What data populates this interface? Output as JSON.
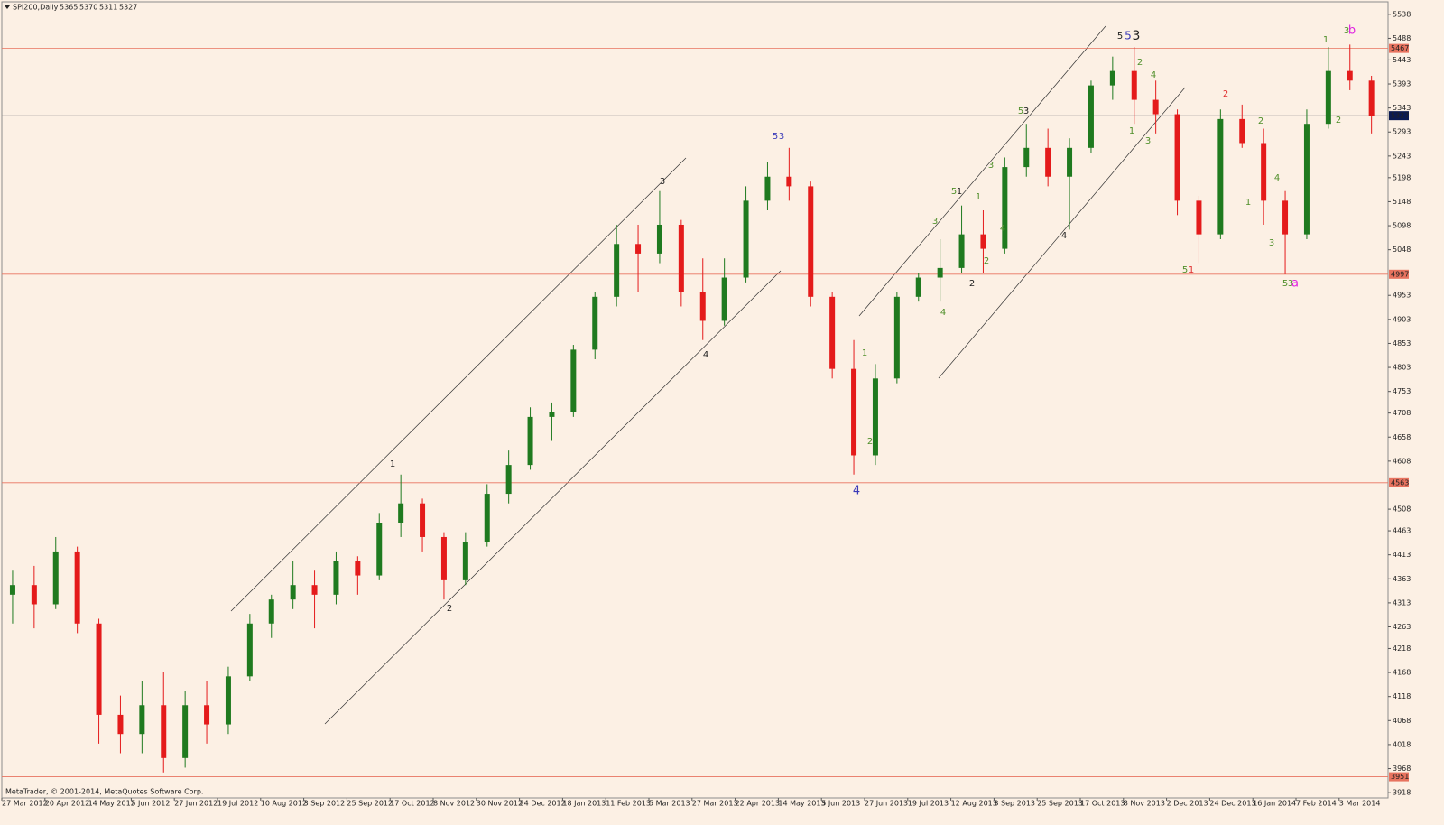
{
  "chart_data": {
    "type": "candlestick",
    "title": "SPI200,Daily",
    "header_values": [
      5365,
      5370,
      5311,
      5327
    ],
    "footer": "MetaTrader, © 2001-2014, MetaQuotes Software Corp.",
    "up_color": "#1f7a1f",
    "down_color": "#e41b1b",
    "categories": [
      "27 Mar 2012",
      null,
      "20 Apr 2012",
      null,
      "14 May 2012",
      null,
      "5 Jun 2012",
      null,
      "27 Jun 2012",
      null,
      "19 Jul 2012",
      null,
      "10 Aug 2012",
      null,
      "3 Sep 2012",
      null,
      "25 Sep 2012",
      null,
      "17 Oct 2012",
      null,
      "8 Nov 2012",
      null,
      "30 Nov 2012",
      null,
      "24 Dec 2012",
      null,
      "18 Jan 2013",
      null,
      "11 Feb 2013",
      null,
      "5 Mar 2013",
      null,
      "27 Mar 2013",
      null,
      "22 Apr 2013",
      null,
      "14 May 2013",
      null,
      "5 Jun 2013",
      null,
      "27 Jun 2013",
      null,
      "19 Jul 2013",
      null,
      "12 Aug 2013",
      null,
      "3 Sep 2013",
      null,
      "25 Sep 2013",
      null,
      "17 Oct 2013",
      null,
      "8 Nov 2013",
      null,
      "2 Dec 2013",
      null,
      "24 Dec 2013",
      null,
      "16 Jan 2014",
      null,
      "7 Feb 2014",
      null,
      "3 Mar 2014",
      null
    ],
    "open": [
      4330,
      4350,
      4310,
      4420,
      4270,
      4080,
      4040,
      4100,
      3990,
      4100,
      4060,
      4160,
      4270,
      4320,
      4350,
      4330,
      4400,
      4370,
      4480,
      4520,
      4450,
      4360,
      4440,
      4540,
      4600,
      4700,
      4710,
      4840,
      4950,
      5060,
      5040,
      5100,
      4960,
      4900,
      4990,
      5150,
      5200,
      5180,
      4950,
      4800,
      4620,
      4780,
      4950,
      4990,
      5010,
      5080,
      5050,
      5220,
      5260,
      5200,
      5260,
      5390,
      5420,
      5360,
      5330,
      5150,
      5080,
      5320,
      5270,
      5150,
      5080,
      5310,
      5420,
      5400
    ],
    "high": [
      4380,
      4390,
      4450,
      4430,
      4280,
      4120,
      4150,
      4170,
      4130,
      4150,
      4180,
      4290,
      4330,
      4400,
      4380,
      4420,
      4410,
      4500,
      4580,
      4530,
      4460,
      4460,
      4560,
      4630,
      4720,
      4730,
      4850,
      4960,
      5100,
      5100,
      5170,
      5110,
      5030,
      5030,
      5180,
      5230,
      5260,
      5190,
      4960,
      4860,
      4810,
      4960,
      5000,
      5070,
      5140,
      5130,
      5240,
      5310,
      5300,
      5280,
      5400,
      5450,
      5470,
      5400,
      5340,
      5160,
      5340,
      5350,
      5300,
      5170,
      5340,
      5470,
      5475,
      5410
    ],
    "low": [
      4270,
      4260,
      4300,
      4250,
      4020,
      4000,
      4000,
      3960,
      3970,
      4020,
      4040,
      4150,
      4240,
      4300,
      4260,
      4310,
      4330,
      4360,
      4450,
      4420,
      4320,
      4350,
      4430,
      4520,
      4590,
      4650,
      4700,
      4820,
      4930,
      4960,
      5020,
      4930,
      4860,
      4890,
      4980,
      5130,
      5150,
      4930,
      4780,
      4580,
      4600,
      4770,
      4940,
      4940,
      5000,
      5000,
      5040,
      5200,
      5180,
      5090,
      5250,
      5360,
      5310,
      5290,
      5120,
      5020,
      5070,
      5260,
      5100,
      4997,
      5070,
      5300,
      5380,
      5290
    ],
    "close": [
      4350,
      4310,
      4420,
      4270,
      4080,
      4040,
      4100,
      3990,
      4100,
      4060,
      4160,
      4270,
      4320,
      4350,
      4330,
      4400,
      4370,
      4480,
      4520,
      4450,
      4360,
      4440,
      4540,
      4600,
      4700,
      4710,
      4840,
      4950,
      5060,
      5040,
      5100,
      4960,
      4900,
      4990,
      5150,
      5200,
      5180,
      4950,
      4800,
      4620,
      4780,
      4950,
      4990,
      5010,
      5080,
      5050,
      5220,
      5260,
      5200,
      5260,
      5390,
      5420,
      5360,
      5330,
      5150,
      5080,
      5320,
      5270,
      5150,
      5080,
      5310,
      5420,
      5400,
      5327
    ],
    "ylim": [
      3907,
      5564
    ],
    "yticks": [
      5538,
      5488,
      5443,
      5393,
      5343,
      5293,
      5243,
      5198,
      5148,
      5098,
      5048,
      4953,
      4903,
      4853,
      4803,
      4753,
      4708,
      4658,
      4608,
      4508,
      4463,
      4413,
      4363,
      4313,
      4263,
      4218,
      4168,
      4118,
      4068,
      4018,
      3968,
      3918
    ],
    "levels": [
      {
        "value": 5467,
        "color": "#e8735f"
      },
      {
        "value": 5327,
        "color": "#8a8a8a",
        "label_color": "#0b1a52"
      },
      {
        "value": 4997,
        "color": "#e8735f"
      },
      {
        "value": 4563,
        "color": "#e8735f"
      },
      {
        "value": 3951,
        "color": "#e8735f"
      }
    ],
    "annotations": [
      {
        "text": "1",
        "color": "#222222"
      },
      {
        "text": "2",
        "color": "#222222"
      },
      {
        "text": "3",
        "color": "#222222"
      },
      {
        "text": "4",
        "color": "#222222"
      },
      {
        "text": "5",
        "color": "#3a3ab8"
      },
      {
        "text": "3",
        "color": "#3a3ab8"
      },
      {
        "text": "4",
        "color": "#3a3ab8"
      },
      {
        "text": "1",
        "color": "#4f8f2a"
      },
      {
        "text": "2",
        "color": "#4f8f2a"
      },
      {
        "text": "3",
        "color": "#4f8f2a"
      },
      {
        "text": "4",
        "color": "#4f8f2a"
      },
      {
        "text": "5",
        "color": "#4f8f2a"
      },
      {
        "text": "1",
        "color": "#222222"
      },
      {
        "text": "2",
        "color": "#222222"
      },
      {
        "text": "1",
        "color": "#4f8f2a"
      },
      {
        "text": "2",
        "color": "#4f8f2a"
      },
      {
        "text": "3",
        "color": "#4f8f2a"
      },
      {
        "text": "4",
        "color": "#4f8f2a"
      },
      {
        "text": "5",
        "color": "#4f8f2a"
      },
      {
        "text": "3",
        "color": "#222222"
      },
      {
        "text": "4",
        "color": "#222222"
      },
      {
        "text": "5",
        "color": "#222222"
      },
      {
        "text": "5",
        "color": "#3a3ab8"
      },
      {
        "text": "3",
        "color": "#222222"
      },
      {
        "text": "2",
        "color": "#4f8f2a"
      },
      {
        "text": "4",
        "color": "#4f8f2a"
      },
      {
        "text": "1",
        "color": "#4f8f2a"
      },
      {
        "text": "3",
        "color": "#4f8f2a"
      },
      {
        "text": "2",
        "color": "#e03030"
      },
      {
        "text": "5",
        "color": "#4f8f2a"
      },
      {
        "text": "1",
        "color": "#e03030"
      },
      {
        "text": "2",
        "color": "#4f8f2a"
      },
      {
        "text": "1",
        "color": "#4f8f2a"
      },
      {
        "text": "4",
        "color": "#4f8f2a"
      },
      {
        "text": "3",
        "color": "#4f8f2a"
      },
      {
        "text": "5",
        "color": "#4f8f2a"
      },
      {
        "text": "3",
        "color": "#4f8f2a"
      },
      {
        "text": "a",
        "color": "#e020e0"
      },
      {
        "text": "1",
        "color": "#4f8f2a"
      },
      {
        "text": "3",
        "color": "#4f8f2a"
      },
      {
        "text": "b",
        "color": "#e020e0"
      },
      {
        "text": "2",
        "color": "#4f8f2a"
      }
    ]
  }
}
